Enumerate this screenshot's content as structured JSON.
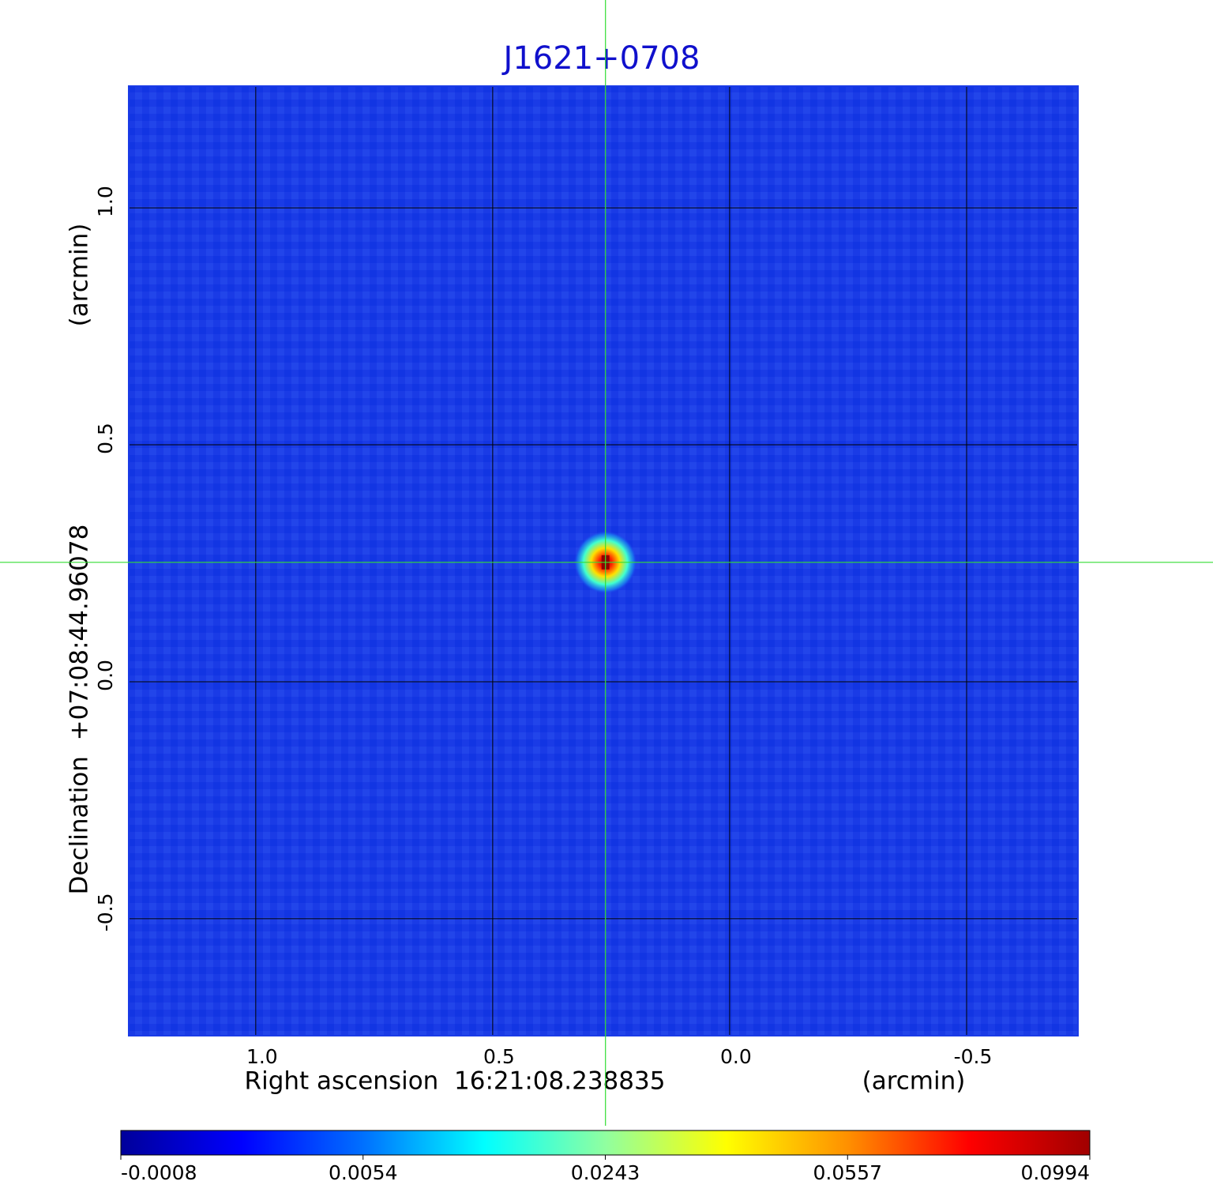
{
  "chart_data": {
    "type": "image",
    "title": "J1621+0708",
    "xlabel": "Right ascension  16:21:08.238835",
    "xunit": "(arcmin)",
    "ylabel": "Declination  +07:08:44.96078",
    "yunit": "(arcmin)",
    "xlim": [
      1.268,
      -0.735
    ],
    "ylim": [
      -0.747,
      1.257
    ],
    "xticks": [
      {
        "value": 1,
        "label": "1.0"
      },
      0.5,
      {
        "value": 0,
        "label": "0.0"
      },
      -0.5
    ],
    "yticks": [
      {
        "value": 1,
        "label": "1.0"
      },
      0.5,
      {
        "value": 0,
        "label": "0.0"
      },
      -0.5
    ],
    "grid": true,
    "source": {
      "x": 0.262,
      "y": 0.252,
      "peak": 0.0994
    },
    "colorbar_ticks": [
      -0.0008,
      0.0054,
      0.0243,
      0.0557,
      0.0994
    ],
    "colormap": [
      "#00009a",
      "#0000ff",
      "#0070ff",
      "#00ffff",
      "#90ffa0",
      "#ffff00",
      "#ff9000",
      "#ff0000",
      "#a00000"
    ],
    "background_color": "#1a3be6",
    "crosshair_color": "#33dd33"
  }
}
